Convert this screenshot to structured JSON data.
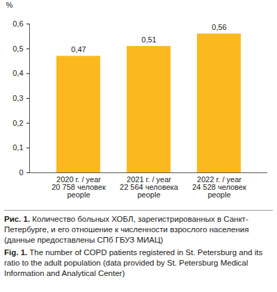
{
  "chart_data": {
    "type": "bar",
    "y_label": "%",
    "categories": [
      "2020 г. / year\n20 758 человек\npeople",
      "2021 г. / year\n22 564 человека\npeople",
      "2022 г. / year\n24 528 человек\npeople"
    ],
    "values": [
      0.47,
      0.51,
      0.56
    ],
    "value_labels": [
      "0,47",
      "0,51",
      "0,56"
    ],
    "data_labels": true,
    "color": "#fbb91f",
    "ylim": [
      0,
      0.6
    ],
    "yticks": [
      0,
      {
        "value": 0.1,
        "label": "0,1"
      },
      {
        "value": 0.2,
        "label": "0,2"
      },
      {
        "value": 0.3,
        "label": "0,3"
      },
      {
        "value": 0.4,
        "label": "0,4"
      },
      {
        "value": 0.5,
        "label": "0,5"
      },
      {
        "value": 0.6,
        "label": "0,6"
      }
    ],
    "grid": false,
    "caption": [
      {
        "label": "Рис. 1.",
        "text": "Количество больных ХОБЛ, зарегистрированных в Санкт-Петербурге, и его отношение к численности взрослого населения (данные предоставлены СПб ГБУЗ МИАЦ)"
      },
      {
        "label": "Fig. 1.",
        "text": "The number of COPD patients registered in St. Petersburg and its ratio to the adult population (data provided by St. Petersburg Medical Information and Analytical Center)"
      }
    ]
  }
}
